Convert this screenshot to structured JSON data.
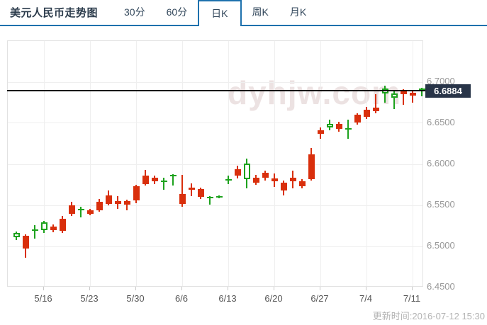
{
  "header": {
    "title": "美元人民币走势图",
    "tabs": [
      {
        "label": "30分",
        "active": false
      },
      {
        "label": "60分",
        "active": false
      },
      {
        "label": "日K",
        "active": true
      },
      {
        "label": "周K",
        "active": false
      },
      {
        "label": "月K",
        "active": false
      }
    ]
  },
  "chart_data": {
    "type": "candlestick",
    "title": "美元人民币走势图",
    "pair": "USD/CNY",
    "selected_interval": "日K",
    "watermark": "dyhjw.com",
    "current_price": 6.6884,
    "current_price_label": "6.6884",
    "update_time": "更新时间:2016-07-12 15:30",
    "y_axis": {
      "range": [
        6.45,
        6.75
      ],
      "ticks": [
        {
          "price": 6.7,
          "label": "6.7000"
        },
        {
          "price": 6.65,
          "label": "6.6500"
        },
        {
          "price": 6.6,
          "label": "6.6000"
        },
        {
          "price": 6.55,
          "label": "6.5500"
        },
        {
          "price": 6.5,
          "label": "6.5000"
        },
        {
          "price": 6.45,
          "label": "6.4500"
        }
      ]
    },
    "x_axis": {
      "tick_labels": [
        "5/16",
        "5/23",
        "5/30",
        "6/6",
        "6/13",
        "6/20",
        "6/27",
        "7/4",
        "7/11"
      ],
      "tick_candle_indices": [
        3,
        8,
        13,
        18,
        23,
        28,
        33,
        38,
        43
      ]
    },
    "candle_format": [
      "date",
      "open",
      "high",
      "low",
      "close",
      "direction(u=red/up,d=green/down)"
    ],
    "candles": [
      [
        "5/11",
        6.516,
        6.518,
        6.508,
        6.511,
        "d"
      ],
      [
        "5/12",
        6.497,
        6.515,
        6.486,
        6.513,
        "u"
      ],
      [
        "5/13",
        6.521,
        6.526,
        6.509,
        6.519,
        "d"
      ],
      [
        "5/16",
        6.529,
        6.531,
        6.516,
        6.52,
        "d"
      ],
      [
        "5/17",
        6.52,
        6.527,
        6.517,
        6.524,
        "u"
      ],
      [
        "5/18",
        6.519,
        6.537,
        6.516,
        6.534,
        "u"
      ],
      [
        "5/19",
        6.54,
        6.554,
        6.537,
        6.55,
        "u"
      ],
      [
        "5/20",
        6.546,
        6.548,
        6.535,
        6.544,
        "d"
      ],
      [
        "5/23",
        6.54,
        6.546,
        6.538,
        6.544,
        "u"
      ],
      [
        "5/24",
        6.544,
        6.558,
        6.542,
        6.554,
        "u"
      ],
      [
        "5/25",
        6.552,
        6.568,
        6.55,
        6.562,
        "u"
      ],
      [
        "5/26",
        6.552,
        6.561,
        6.546,
        6.555,
        "u"
      ],
      [
        "5/27",
        6.551,
        6.557,
        6.544,
        6.555,
        "u"
      ],
      [
        "5/30",
        6.556,
        6.575,
        6.553,
        6.573,
        "u"
      ],
      [
        "5/31",
        6.576,
        6.593,
        6.574,
        6.586,
        "u"
      ],
      [
        "6/1",
        6.579,
        6.586,
        6.576,
        6.584,
        "u"
      ],
      [
        "6/2",
        6.58,
        6.584,
        6.569,
        6.578,
        "d"
      ],
      [
        "6/3",
        6.587,
        6.588,
        6.574,
        6.585,
        "d"
      ],
      [
        "6/6",
        6.552,
        6.587,
        6.548,
        6.564,
        "u"
      ],
      [
        "6/7",
        6.569,
        6.577,
        6.561,
        6.572,
        "u"
      ],
      [
        "6/8",
        6.56,
        6.572,
        6.558,
        6.57,
        "u"
      ],
      [
        "6/9",
        6.56,
        6.561,
        6.551,
        6.559,
        "d"
      ],
      [
        "6/10",
        6.561,
        6.562,
        6.559,
        6.56,
        "d"
      ],
      [
        "6/13",
        6.582,
        6.586,
        6.576,
        6.58,
        "d"
      ],
      [
        "6/14",
        6.586,
        6.598,
        6.583,
        6.594,
        "u"
      ],
      [
        "6/15",
        6.601,
        6.607,
        6.571,
        6.582,
        "d"
      ],
      [
        "6/16",
        6.578,
        6.587,
        6.575,
        6.584,
        "u"
      ],
      [
        "6/17",
        6.584,
        6.592,
        6.58,
        6.59,
        "u"
      ],
      [
        "6/20",
        6.579,
        6.589,
        6.572,
        6.583,
        "u"
      ],
      [
        "6/21",
        6.568,
        6.58,
        6.562,
        6.578,
        "u"
      ],
      [
        "6/22",
        6.579,
        6.592,
        6.571,
        6.584,
        "u"
      ],
      [
        "6/23",
        6.573,
        6.582,
        6.571,
        6.579,
        "u"
      ],
      [
        "6/24",
        6.582,
        6.62,
        6.58,
        6.612,
        "u"
      ],
      [
        "6/27",
        6.637,
        6.645,
        6.631,
        6.641,
        "u"
      ],
      [
        "6/28",
        6.649,
        6.654,
        6.641,
        6.645,
        "d"
      ],
      [
        "6/29",
        6.643,
        6.652,
        6.64,
        6.649,
        "u"
      ],
      [
        "6/30",
        6.644,
        6.654,
        6.631,
        6.642,
        "d"
      ],
      [
        "7/1",
        6.651,
        6.662,
        6.648,
        6.66,
        "u"
      ],
      [
        "7/4",
        6.658,
        6.67,
        6.655,
        6.666,
        "u"
      ],
      [
        "7/5",
        6.665,
        6.685,
        6.662,
        6.669,
        "u"
      ],
      [
        "7/6",
        6.692,
        6.696,
        6.675,
        6.686,
        "d"
      ],
      [
        "7/7",
        6.686,
        6.689,
        6.667,
        6.681,
        "d"
      ],
      [
        "7/8",
        6.685,
        6.691,
        6.672,
        6.689,
        "u"
      ],
      [
        "7/11",
        6.684,
        6.689,
        6.675,
        6.687,
        "u"
      ],
      [
        "7/12",
        6.6925,
        6.693,
        6.683,
        6.6884,
        "d"
      ]
    ],
    "colors": {
      "up": "#d92f0c",
      "down": "#1da21d",
      "accent_blue": "#1e71ad",
      "current_price_line": "#000000",
      "price_tag_bg": "#283448",
      "watermark": "#ece2e2"
    },
    "legend_position": "none",
    "grid": true
  }
}
